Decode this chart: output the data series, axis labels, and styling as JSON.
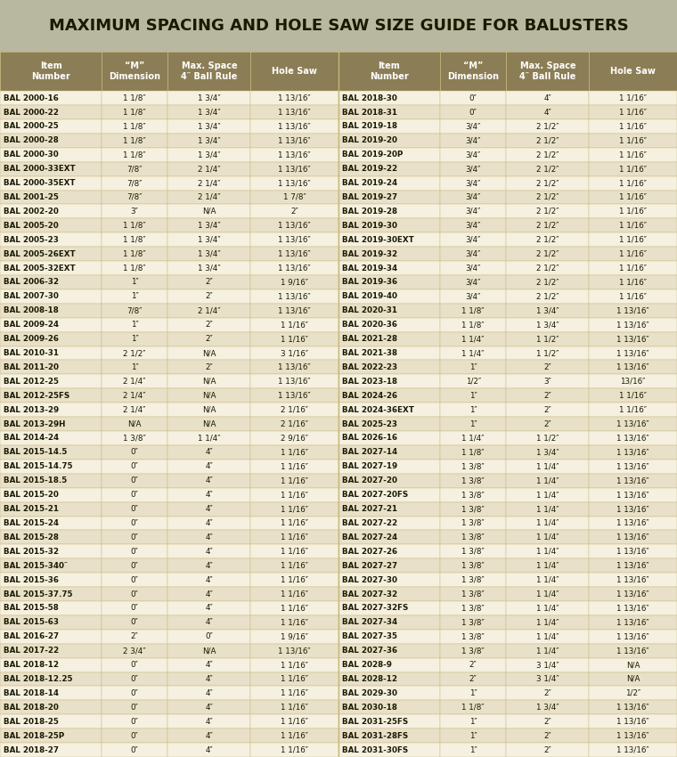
{
  "title": "MAXIMUM SPACING AND HOLE SAW SIZE GUIDE FOR BALUSTERS",
  "headers": [
    "Item\nNumber",
    "“M”\nDimension",
    "Max. Space\n4″ Ball Rule",
    "Hole Saw"
  ],
  "title_bg": "#b8b8a0",
  "header_bg": "#8b7d55",
  "header_fg": "#ffffff",
  "row_bg_odd": "#f5f0e0",
  "row_bg_even": "#e8e0c8",
  "row_border": "#c8b878",
  "left_data": [
    [
      "BAL 2000-16",
      "1 1/8″",
      "1 3/4″",
      "1 13/16″"
    ],
    [
      "BAL 2000-22",
      "1 1/8″",
      "1 3/4″",
      "1 13/16″"
    ],
    [
      "BAL 2000-25",
      "1 1/8″",
      "1 3/4″",
      "1 13/16″"
    ],
    [
      "BAL 2000-28",
      "1 1/8″",
      "1 3/4″",
      "1 13/16″"
    ],
    [
      "BAL 2000-30",
      "1 1/8″",
      "1 3/4″",
      "1 13/16″"
    ],
    [
      "BAL 2000-33EXT",
      "7/8″",
      "2 1/4″",
      "1 13/16″"
    ],
    [
      "BAL 2000-35EXT",
      "7/8″",
      "2 1/4″",
      "1 13/16″"
    ],
    [
      "BAL 2001-25",
      "7/8″",
      "2 1/4″",
      "1 7/8″"
    ],
    [
      "BAL 2002-20",
      "3″",
      "N/A",
      "2″"
    ],
    [
      "BAL 2005-20",
      "1 1/8″",
      "1 3/4″",
      "1 13/16″"
    ],
    [
      "BAL 2005-23",
      "1 1/8″",
      "1 3/4″",
      "1 13/16″"
    ],
    [
      "BAL 2005-26EXT",
      "1 1/8″",
      "1 3/4″",
      "1 13/16″"
    ],
    [
      "BAL 2005-32EXT",
      "1 1/8″",
      "1 3/4″",
      "1 13/16″"
    ],
    [
      "BAL 2006-32",
      "1″",
      "2″",
      "1 9/16″"
    ],
    [
      "BAL 2007-30",
      "1″",
      "2″",
      "1 13/16″"
    ],
    [
      "BAL 2008-18",
      "7/8″",
      "2 1/4″",
      "1 13/16″"
    ],
    [
      "BAL 2009-24",
      "1″",
      "2″",
      "1 1/16″"
    ],
    [
      "BAL 2009-26",
      "1″",
      "2″",
      "1 1/16″"
    ],
    [
      "BAL 2010-31",
      "2 1/2″",
      "N/A",
      "3 1/16″"
    ],
    [
      "BAL 2011-20",
      "1″",
      "2″",
      "1 13/16″"
    ],
    [
      "BAL 2012-25",
      "2 1/4″",
      "N/A",
      "1 13/16″"
    ],
    [
      "BAL 2012-25FS",
      "2 1/4″",
      "N/A",
      "1 13/16″"
    ],
    [
      "BAL 2013-29",
      "2 1/4″",
      "N/A",
      "2 1/16″"
    ],
    [
      "BAL 2013-29H",
      "N/A",
      "N/A",
      "2 1/16″"
    ],
    [
      "BAL 2014-24",
      "1 3/8″",
      "1 1/4″",
      "2 9/16″"
    ],
    [
      "BAL 2015-14.5",
      "0″",
      "4″",
      "1 1/16″"
    ],
    [
      "BAL 2015-14.75",
      "0″",
      "4″",
      "1 1/16″"
    ],
    [
      "BAL 2015-18.5",
      "0″",
      "4″",
      "1 1/16″"
    ],
    [
      "BAL 2015-20",
      "0″",
      "4″",
      "1 1/16″"
    ],
    [
      "BAL 2015-21",
      "0″",
      "4″",
      "1 1/16″"
    ],
    [
      "BAL 2015-24",
      "0″",
      "4″",
      "1 1/16″"
    ],
    [
      "BAL 2015-28",
      "0″",
      "4″",
      "1 1/16″"
    ],
    [
      "BAL 2015-32",
      "0″",
      "4″",
      "1 1/16″"
    ],
    [
      "BAL 2015-340″",
      "0″",
      "4″",
      "1 1/16″"
    ],
    [
      "BAL 2015-36",
      "0″",
      "4″",
      "1 1/16″"
    ],
    [
      "BAL 2015-37.75",
      "0″",
      "4″",
      "1 1/16″"
    ],
    [
      "BAL 2015-58",
      "0″",
      "4″",
      "1 1/16″"
    ],
    [
      "BAL 2015-63",
      "0″",
      "4″",
      "1 1/16″"
    ],
    [
      "BAL 2016-27",
      "2″",
      "0″",
      "1 9/16″"
    ],
    [
      "BAL 2017-22",
      "2 3/4″",
      "N/A",
      "1 13/16″"
    ],
    [
      "BAL 2018-12",
      "0″",
      "4″",
      "1 1/16″"
    ],
    [
      "BAL 2018-12.25",
      "0″",
      "4″",
      "1 1/16″"
    ],
    [
      "BAL 2018-14",
      "0″",
      "4″",
      "1 1/16″"
    ],
    [
      "BAL 2018-20",
      "0″",
      "4″",
      "1 1/16″"
    ],
    [
      "BAL 2018-25",
      "0″",
      "4″",
      "1 1/16″"
    ],
    [
      "BAL 2018-25P",
      "0″",
      "4″",
      "1 1/16″"
    ],
    [
      "BAL 2018-27",
      "0″",
      "4″",
      "1 1/16″"
    ]
  ],
  "right_data": [
    [
      "BAL 2018-30",
      "0″",
      "4″",
      "1 1/16″"
    ],
    [
      "BAL 2018-31",
      "0″",
      "4″",
      "1 1/16″"
    ],
    [
      "BAL 2019-18",
      "3/4″",
      "2 1/2″",
      "1 1/16″"
    ],
    [
      "BAL 2019-20",
      "3/4″",
      "2 1/2″",
      "1 1/16″"
    ],
    [
      "BAL 2019-20P",
      "3/4″",
      "2 1/2″",
      "1 1/16″"
    ],
    [
      "BAL 2019-22",
      "3/4″",
      "2 1/2″",
      "1 1/16″"
    ],
    [
      "BAL 2019-24",
      "3/4″",
      "2 1/2″",
      "1 1/16″"
    ],
    [
      "BAL 2019-27",
      "3/4″",
      "2 1/2″",
      "1 1/16″"
    ],
    [
      "BAL 2019-28",
      "3/4″",
      "2 1/2″",
      "1 1/16″"
    ],
    [
      "BAL 2019-30",
      "3/4″",
      "2 1/2″",
      "1 1/16″"
    ],
    [
      "BAL 2019-30EXT",
      "3/4″",
      "2 1/2″",
      "1 1/16″"
    ],
    [
      "BAL 2019-32",
      "3/4″",
      "2 1/2″",
      "1 1/16″"
    ],
    [
      "BAL 2019-34",
      "3/4″",
      "2 1/2″",
      "1 1/16″"
    ],
    [
      "BAL 2019-36",
      "3/4″",
      "2 1/2″",
      "1 1/16″"
    ],
    [
      "BAL 2019-40",
      "3/4″",
      "2 1/2″",
      "1 1/16″"
    ],
    [
      "BAL 2020-31",
      "1 1/8″",
      "1 3/4″",
      "1 13/16″"
    ],
    [
      "BAL 2020-36",
      "1 1/8″",
      "1 3/4″",
      "1 13/16″"
    ],
    [
      "BAL 2021-28",
      "1 1/4″",
      "1 1/2″",
      "1 13/16″"
    ],
    [
      "BAL 2021-38",
      "1 1/4″",
      "1 1/2″",
      "1 13/16″"
    ],
    [
      "BAL 2022-23",
      "1″",
      "2″",
      "1 13/16″"
    ],
    [
      "BAL 2023-18",
      "1/2″",
      "3″",
      "13/16″"
    ],
    [
      "BAL 2024-26",
      "1″",
      "2″",
      "1 1/16″"
    ],
    [
      "BAL 2024-36EXT",
      "1″",
      "2″",
      "1 1/16″"
    ],
    [
      "BAL 2025-23",
      "1″",
      "2″",
      "1 13/16″"
    ],
    [
      "BAL 2026-16",
      "1 1/4″",
      "1 1/2″",
      "1 13/16″"
    ],
    [
      "BAL 2027-14",
      "1 1/8″",
      "1 3/4″",
      "1 13/16″"
    ],
    [
      "BAL 2027-19",
      "1 3/8″",
      "1 1/4″",
      "1 13/16″"
    ],
    [
      "BAL 2027-20",
      "1 3/8″",
      "1 1/4″",
      "1 13/16″"
    ],
    [
      "BAL 2027-20FS",
      "1 3/8″",
      "1 1/4″",
      "1 13/16″"
    ],
    [
      "BAL 2027-21",
      "1 3/8″",
      "1 1/4″",
      "1 13/16″"
    ],
    [
      "BAL 2027-22",
      "1 3/8″",
      "1 1/4″",
      "1 13/16″"
    ],
    [
      "BAL 2027-24",
      "1 3/8″",
      "1 1/4″",
      "1 13/16″"
    ],
    [
      "BAL 2027-26",
      "1 3/8″",
      "1 1/4″",
      "1 13/16″"
    ],
    [
      "BAL 2027-27",
      "1 3/8″",
      "1 1/4″",
      "1 13/16″"
    ],
    [
      "BAL 2027-30",
      "1 3/8″",
      "1 1/4″",
      "1 13/16″"
    ],
    [
      "BAL 2027-32",
      "1 3/8″",
      "1 1/4″",
      "1 13/16″"
    ],
    [
      "BAL 2027-32FS",
      "1 3/8″",
      "1 1/4″",
      "1 13/16″"
    ],
    [
      "BAL 2027-34",
      "1 3/8″",
      "1 1/4″",
      "1 13/16″"
    ],
    [
      "BAL 2027-35",
      "1 3/8″",
      "1 1/4″",
      "1 13/16″"
    ],
    [
      "BAL 2027-36",
      "1 3/8″",
      "1 1/4″",
      "1 13/16″"
    ],
    [
      "BAL 2028-9",
      "2″",
      "3 1/4″",
      "N/A"
    ],
    [
      "BAL 2028-12",
      "2″",
      "3 1/4″",
      "N/A"
    ],
    [
      "BAL 2029-30",
      "1″",
      "2″",
      "1/2″"
    ],
    [
      "BAL 2030-18",
      "1 1/8″",
      "1 3/4″",
      "1 13/16″"
    ],
    [
      "BAL 2031-25FS",
      "1″",
      "2″",
      "1 13/16″"
    ],
    [
      "BAL 2031-28FS",
      "1″",
      "2″",
      "1 13/16″"
    ],
    [
      "BAL 2031-30FS",
      "1″",
      "2″",
      "1 13/16″"
    ]
  ]
}
